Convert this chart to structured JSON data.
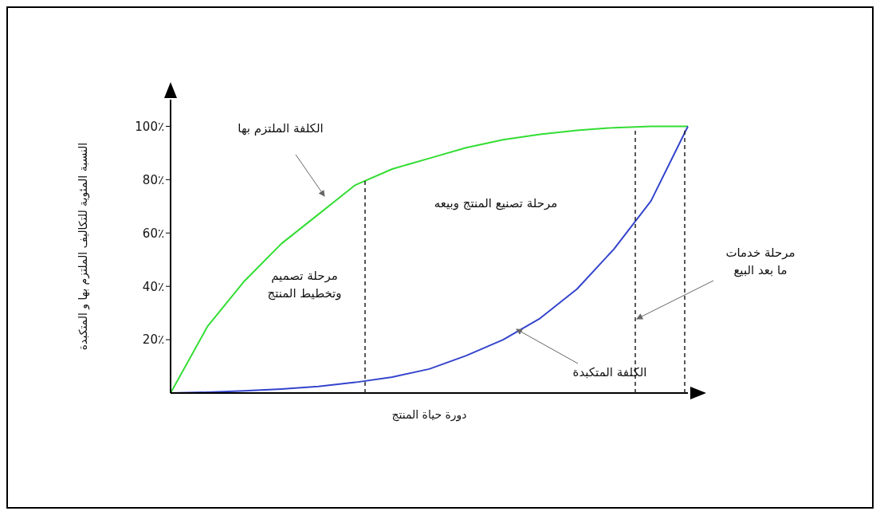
{
  "chart_data": {
    "type": "line",
    "xlabel": "دورة حياة المنتج",
    "ylabel": "النسبة المئوية للتكاليف الملتزم بها و المتكبدة",
    "categories": [
      null,
      null,
      null,
      null,
      null,
      null,
      null,
      null,
      null,
      null,
      null,
      null,
      null,
      null,
      null
    ],
    "ylim": [
      0,
      110
    ],
    "yticks": [
      {
        "value": 20,
        "label": "20٪"
      },
      {
        "value": 40,
        "label": "40٪"
      },
      {
        "value": 60,
        "label": "60٪"
      },
      {
        "value": 80,
        "label": "80٪"
      },
      {
        "value": 100,
        "label": "100٪"
      }
    ],
    "tick_labels": "y",
    "grid": false,
    "legend": false,
    "marker": "none",
    "line_style": "solid",
    "series": [
      {
        "color": "#33dd33",
        "values": [
          0,
          25,
          42,
          56,
          67,
          78,
          84,
          88,
          92,
          95,
          97,
          98.5,
          99.5,
          100,
          100
        ]
      },
      {
        "color": "#3344cc",
        "values": [
          0,
          0.3,
          0.8,
          1.5,
          2.5,
          4,
          6,
          9,
          14,
          20,
          28,
          39,
          54,
          72,
          100
        ]
      }
    ],
    "annotations": [
      "الكلفة الملتزم بها",
      "الكلفة المتكبدة",
      "مرحلة تصميم\nوتخطيط المنتج",
      "مرحلة تصنيع المنتج وبيعه",
      "مرحلة خدمات\nما بعد البيع"
    ]
  }
}
